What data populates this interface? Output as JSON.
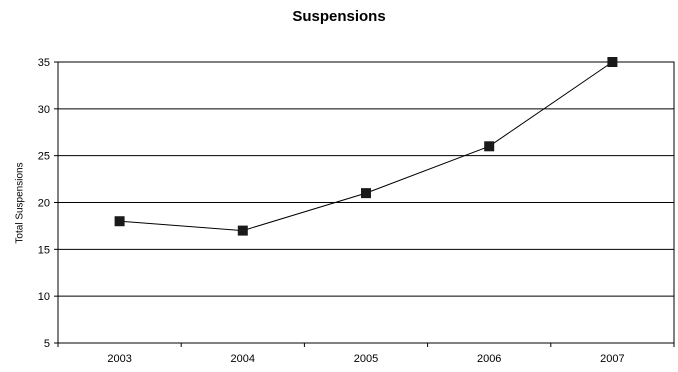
{
  "chart_data": {
    "type": "line",
    "title": "Suspensions",
    "xlabel": "",
    "ylabel": "Total Suspensions",
    "categories": [
      "2003",
      "2004",
      "2005",
      "2006",
      "2007"
    ],
    "series": [
      {
        "values": [
          18,
          17,
          21,
          26,
          35
        ]
      }
    ],
    "ylim": [
      5,
      35
    ],
    "yticks": [
      5,
      10,
      15,
      20,
      25,
      30,
      35
    ],
    "grid": true,
    "legend": "none",
    "line_color": "#000000",
    "marker": "square"
  }
}
